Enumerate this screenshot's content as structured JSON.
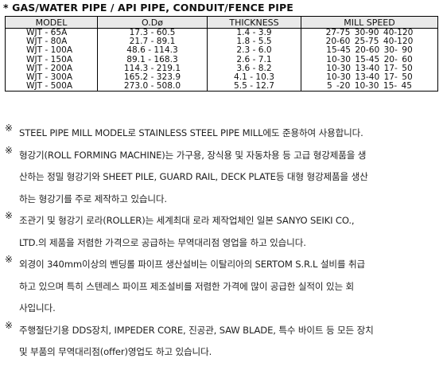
{
  "title": "* GAS/WATER PIPE / API PIPE, CONDUIT/FENCE PIPE",
  "table": {
    "headers": [
      "MODEL",
      "O.Dø",
      "THICKNESS",
      "MILL SPEED"
    ],
    "rows": [
      [
        "WJT - 65A",
        "17.3 - 60.5",
        "1.4 - 3.9",
        "27-75  30-90  40-120"
      ],
      [
        "WJT - 80A",
        "21.7 - 89.1",
        "1.8 - 5.5",
        "20-60  25-75  40-120"
      ],
      [
        "WJT - 100A",
        "48.6 - 114.3",
        "2.3 - 6.0",
        "15-45  20-60  30- 90"
      ],
      [
        "WJT - 150A",
        "89.1 - 168.3",
        "2.6 - 7.1",
        "10-30  15-45  20- 60"
      ],
      [
        "WJT - 200A",
        "114.3 - 219.1",
        "3.6 - 8.2",
        "10-30  13-40  17- 50"
      ],
      [
        "WJT - 300A",
        "165.2 - 323.9",
        "4.1 - 10.3",
        "10-30  13-40  17- 50"
      ],
      [
        "WJT - 500A",
        "273.0 - 508.0",
        "5.5 - 12.7",
        "5 -20  10-30  15- 45"
      ]
    ]
  },
  "notes": [
    {
      "mark": "※",
      "lines": [
        "STEEL PIPE MILL MODEL로 STAINLESS STEEL PIPE MILL에도 준용하여 사용합니다."
      ]
    },
    {
      "mark": "※",
      "lines": [
        "형강기(ROLL FORMING MACHINE)는 가구용, 장식용 및 자동차용 등 고급 형강제품을 생",
        "산하는 정밀 형강기와 SHEET PILE, GUARD RAIL, DECK PLATE등 대형 형강제품을 생산",
        "하는 형강기를 주로 제작하고 있습니다."
      ]
    },
    {
      "mark": "※",
      "lines": [
        "조관기 및 형강기 로라(ROLLER)는 세계최대 로라 제작업체인 일본 SANYO SEIKI CO.,",
        "LTD.의 제품을 저렴한 가격으로 공급하는 무역대리점 영업을 하고 있습니다."
      ]
    },
    {
      "mark": "※",
      "lines": [
        "외경이 340mm이상의 벤딩롤 파이프 생산설비는 이탈리아의 SERTOM S.R.L 설비를 취급",
        "하고 있으며 특히 스텐레스 파이프 제조설비를 저렴한 가격에 많이 공급한 실적이 있는 회",
        "사입니다."
      ]
    },
    {
      "mark": "※",
      "lines": [
        "주행절단기용 DDS장치, IMPEDER CORE, 진공관, SAW BLADE, 특수 바이트 등 모든 장치",
        "및 부품의 무역대리점(offer)영업도 하고 있습니다."
      ]
    }
  ]
}
